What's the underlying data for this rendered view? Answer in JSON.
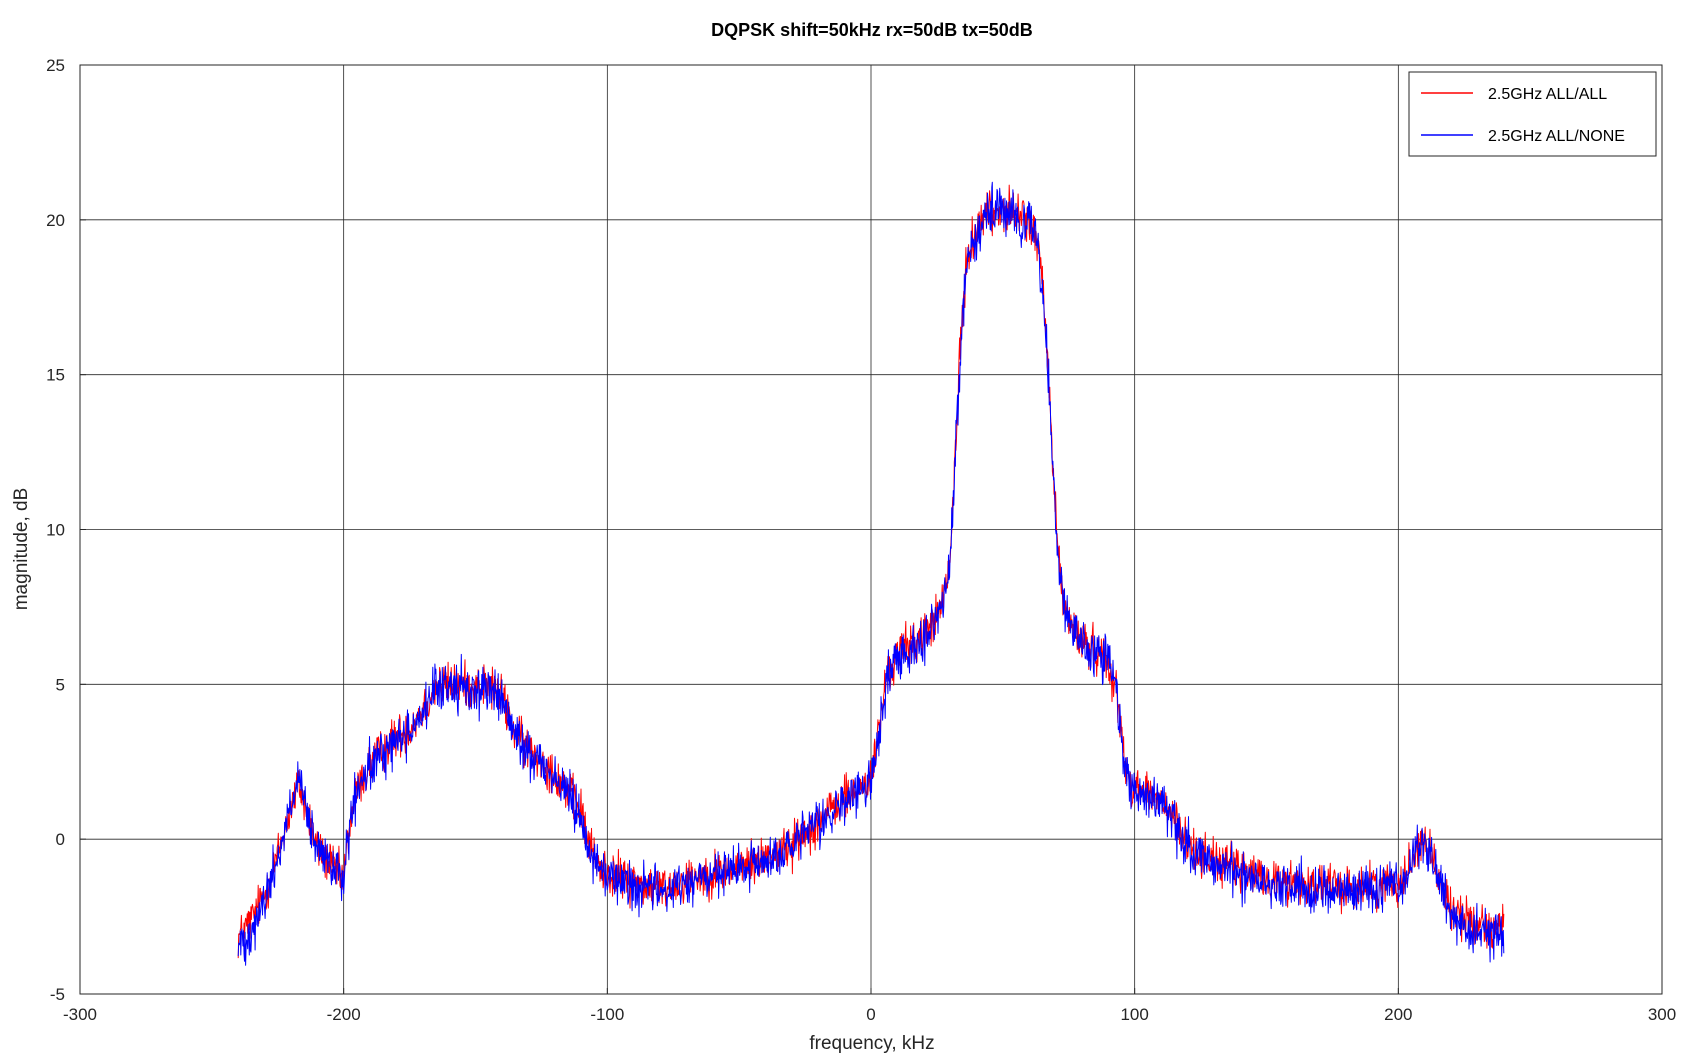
{
  "chart_data": {
    "type": "line",
    "title": "DQPSK shift=50kHz rx=50dB tx=50dB",
    "xlabel": "frequency, kHz",
    "ylabel": "magnitude, dB",
    "xlim": [
      -300,
      300
    ],
    "ylim": [
      -5,
      25
    ],
    "xticks": [
      -300,
      -200,
      -100,
      0,
      100,
      200,
      300
    ],
    "yticks": [
      -5,
      0,
      5,
      10,
      15,
      20,
      25
    ],
    "xtick_labels": [
      "-300",
      "-200",
      "-100",
      "0",
      "100",
      "200",
      "300"
    ],
    "ytick_labels": [
      "-5",
      "0",
      "5",
      "10",
      "15",
      "20",
      "25"
    ],
    "grid": true,
    "legend_position": "top-right",
    "series": [
      {
        "name": "2.5GHz ALL/ALL",
        "color": "#ff0000",
        "envelope": {
          "x": [
            -240,
            -235,
            -230,
            -225,
            -220,
            -217,
            -214,
            -210,
            -205,
            -200,
            -198,
            -195,
            -190,
            -185,
            -180,
            -175,
            -170,
            -165,
            -160,
            -155,
            -150,
            -145,
            -140,
            -135,
            -130,
            -125,
            -120,
            -115,
            -110,
            -107,
            -104,
            -100,
            -95,
            -90,
            -80,
            -70,
            -60,
            -50,
            -40,
            -30,
            -20,
            -10,
            -5,
            0,
            2,
            4,
            6,
            10,
            15,
            20,
            25,
            28,
            30,
            32,
            34,
            36,
            40,
            45,
            50,
            55,
            60,
            63,
            65,
            67,
            69,
            71,
            73,
            75,
            80,
            85,
            90,
            93,
            95,
            97,
            100,
            105,
            110,
            115,
            120,
            130,
            140,
            150,
            160,
            170,
            180,
            190,
            200,
            205,
            208,
            212,
            215,
            220,
            225,
            230,
            235,
            240
          ],
          "y": [
            -3.2,
            -2.6,
            -1.8,
            -0.5,
            1.0,
            1.8,
            0.9,
            -0.3,
            -0.8,
            -1.3,
            0.3,
            1.6,
            2.4,
            2.9,
            3.3,
            3.6,
            4.2,
            4.9,
            5.0,
            5.0,
            4.9,
            5.0,
            4.6,
            3.4,
            2.9,
            2.6,
            2.1,
            1.6,
            0.9,
            -0.1,
            -0.8,
            -1.1,
            -1.2,
            -1.4,
            -1.6,
            -1.3,
            -1.1,
            -0.9,
            -0.6,
            -0.2,
            0.6,
            1.3,
            1.6,
            1.9,
            2.9,
            4.2,
            5.2,
            6.0,
            6.3,
            6.6,
            7.2,
            7.9,
            9.0,
            12.5,
            16.0,
            18.5,
            19.8,
            20.3,
            20.3,
            20.2,
            20.0,
            19.3,
            18.0,
            15.5,
            12.0,
            9.2,
            7.8,
            7.0,
            6.4,
            6.1,
            5.8,
            4.8,
            3.4,
            2.1,
            1.7,
            1.5,
            1.2,
            0.6,
            -0.2,
            -0.7,
            -1.0,
            -1.3,
            -1.4,
            -1.5,
            -1.6,
            -1.5,
            -1.4,
            -0.8,
            0.0,
            -0.3,
            -1.2,
            -2.2,
            -2.6,
            -2.7,
            -2.8,
            -2.9
          ]
        },
        "noise_db": 0.55
      },
      {
        "name": "2.5GHz ALL/NONE",
        "color": "#0000ff",
        "envelope": {
          "x": [
            -240,
            -235,
            -230,
            -225,
            -220,
            -217,
            -214,
            -210,
            -205,
            -200,
            -198,
            -195,
            -190,
            -185,
            -180,
            -175,
            -170,
            -165,
            -160,
            -155,
            -150,
            -145,
            -140,
            -135,
            -130,
            -125,
            -120,
            -115,
            -110,
            -107,
            -104,
            -100,
            -95,
            -90,
            -80,
            -70,
            -60,
            -50,
            -40,
            -30,
            -20,
            -10,
            -5,
            0,
            2,
            4,
            6,
            10,
            15,
            20,
            25,
            28,
            30,
            32,
            34,
            36,
            40,
            45,
            50,
            55,
            60,
            63,
            65,
            67,
            69,
            71,
            73,
            75,
            80,
            85,
            90,
            93,
            95,
            97,
            100,
            105,
            110,
            115,
            120,
            130,
            140,
            150,
            160,
            170,
            180,
            190,
            200,
            205,
            208,
            212,
            215,
            220,
            225,
            230,
            235,
            240
          ],
          "y": [
            -3.5,
            -2.9,
            -2.0,
            -0.6,
            1.1,
            1.9,
            0.8,
            -0.4,
            -0.9,
            -1.2,
            0.2,
            1.5,
            2.3,
            2.8,
            3.2,
            3.5,
            4.1,
            4.8,
            5.0,
            4.9,
            4.8,
            4.9,
            4.5,
            3.3,
            2.8,
            2.5,
            2.0,
            1.5,
            0.8,
            -0.2,
            -0.9,
            -1.2,
            -1.3,
            -1.5,
            -1.7,
            -1.4,
            -1.2,
            -1.0,
            -0.7,
            -0.3,
            0.5,
            1.2,
            1.5,
            1.8,
            2.8,
            4.1,
            5.1,
            5.9,
            6.2,
            6.5,
            7.1,
            7.8,
            8.9,
            12.4,
            15.9,
            18.4,
            19.7,
            20.2,
            20.2,
            20.1,
            19.9,
            19.2,
            17.9,
            15.4,
            11.9,
            9.1,
            7.7,
            6.9,
            6.3,
            6.0,
            5.7,
            4.7,
            3.3,
            2.0,
            1.6,
            1.4,
            1.1,
            0.5,
            -0.3,
            -0.8,
            -1.1,
            -1.4,
            -1.5,
            -1.6,
            -1.7,
            -1.6,
            -1.5,
            -0.9,
            -0.1,
            -0.5,
            -1.4,
            -2.4,
            -2.8,
            -2.9,
            -3.0,
            -3.1
          ]
        },
        "noise_db": 0.6
      }
    ]
  }
}
